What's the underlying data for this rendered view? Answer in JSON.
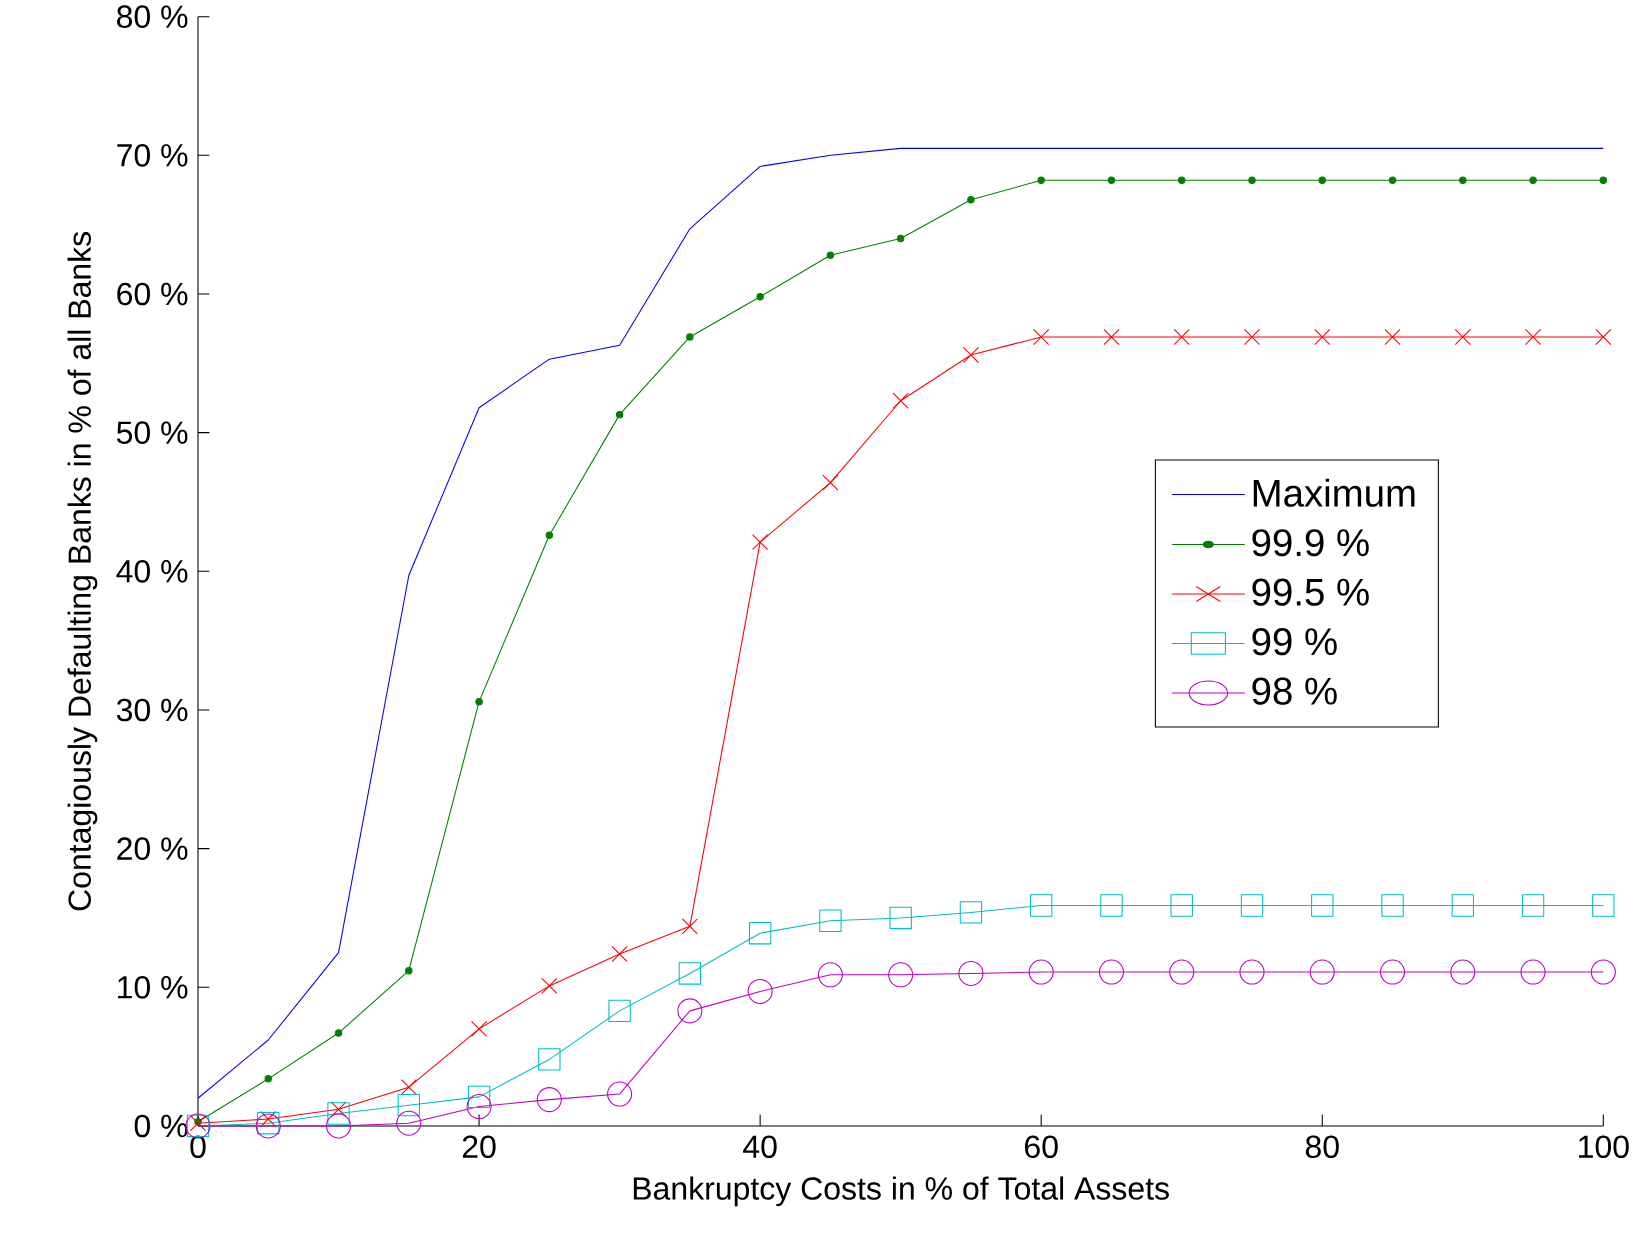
{
  "chart_data": {
    "type": "line",
    "xlabel": "Bankruptcy Costs in % of Total Assets",
    "ylabel": "Contagiously Defaulting Banks in % of all Banks",
    "x": [
      0,
      5,
      10,
      15,
      20,
      25,
      30,
      35,
      40,
      45,
      50,
      55,
      60,
      65,
      70,
      75,
      80,
      85,
      90,
      95,
      100
    ],
    "series": [
      {
        "name": "Maximum",
        "color": "#0000ff",
        "marker": "none",
        "values": [
          2,
          6.2,
          12.5,
          39.7,
          51.8,
          55.3,
          56.3,
          64.7,
          69.2,
          70.0,
          70.5,
          70.5,
          70.5,
          70.5,
          70.5,
          70.5,
          70.5,
          70.5,
          70.5,
          70.5,
          70.5
        ]
      },
      {
        "name": "99.9 %",
        "color": "#008000",
        "marker": "circle",
        "values": [
          0.3,
          3.4,
          6.7,
          11.2,
          30.6,
          42.6,
          51.3,
          56.9,
          59.8,
          62.8,
          64.0,
          66.8,
          68.2,
          68.2,
          68.2,
          68.2,
          68.2,
          68.2,
          68.2,
          68.2,
          68.2
        ]
      },
      {
        "name": "99.5 %",
        "color": "#ff0000",
        "marker": "cross",
        "values": [
          0.2,
          0.5,
          1.2,
          2.8,
          7.0,
          10.1,
          12.4,
          14.4,
          42.1,
          46.4,
          52.3,
          55.6,
          56.9,
          56.9,
          56.9,
          56.9,
          56.9,
          56.9,
          56.9,
          56.9,
          56.9
        ]
      },
      {
        "name": "99 %",
        "color": "#00bfbf",
        "marker": "square",
        "values": [
          0,
          0.2,
          0.9,
          1.5,
          2.1,
          4.8,
          8.3,
          11.0,
          13.9,
          14.8,
          15.0,
          15.4,
          15.9,
          15.9,
          15.9,
          15.9,
          15.9,
          15.9,
          15.9,
          15.9,
          15.9
        ]
      },
      {
        "name": "98 %",
        "color": "#bf00bf",
        "marker": "circle",
        "values": [
          0,
          0,
          0,
          0.2,
          1.4,
          1.9,
          2.3,
          8.3,
          9.7,
          10.9,
          10.9,
          11.0,
          11.1,
          11.1,
          11.1,
          11.1,
          11.1,
          11.1,
          11.1,
          11.1,
          11.1
        ]
      }
    ],
    "xlim": [
      0,
      100
    ],
    "ylim": [
      0,
      80
    ],
    "xticks": [
      0,
      20,
      40,
      60,
      80,
      100
    ],
    "yticks": [
      {
        "value": 0,
        "label": "0 %"
      },
      {
        "value": 10,
        "label": "10 %"
      },
      {
        "value": 20,
        "label": "20 %"
      },
      {
        "value": 30,
        "label": "30 %"
      },
      {
        "value": 40,
        "label": "40 %"
      },
      {
        "value": 50,
        "label": "50 %"
      },
      {
        "value": 60,
        "label": "60 %"
      },
      {
        "value": 70,
        "label": "70 %"
      },
      {
        "value": 80,
        "label": "80 %"
      }
    ],
    "legend": "right",
    "grid": false
  }
}
